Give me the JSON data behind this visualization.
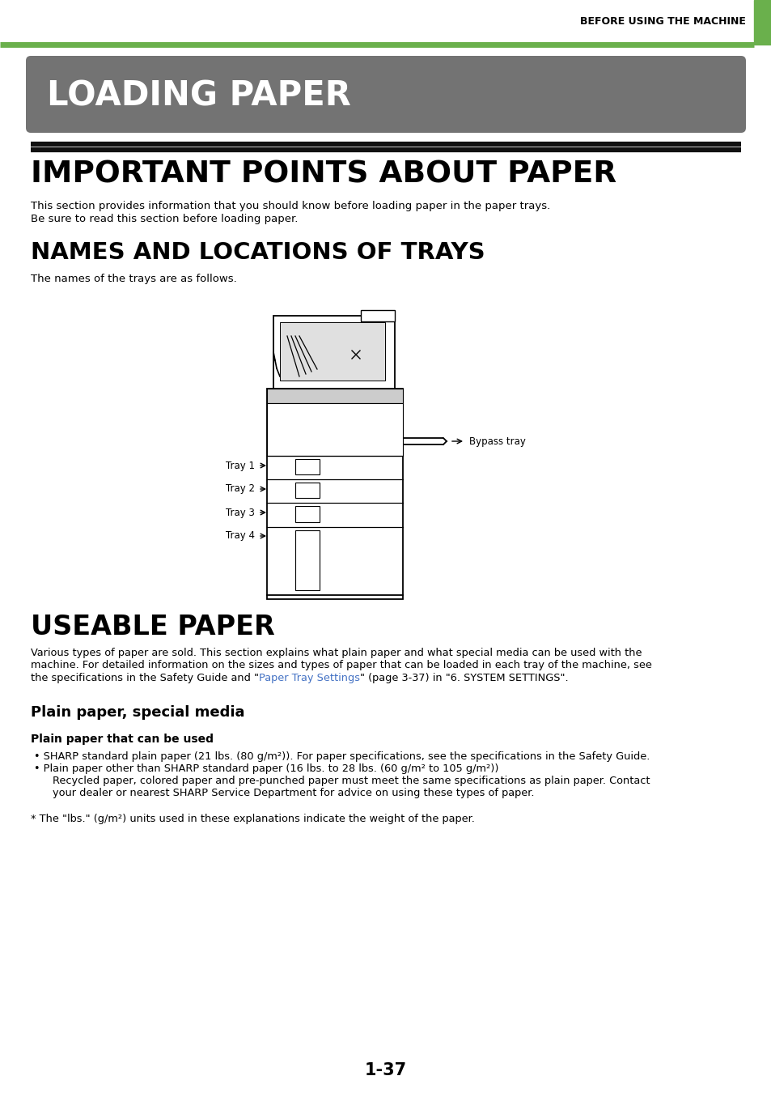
{
  "header_text": "BEFORE USING THE MACHINE",
  "header_bar_color": "#6ab04c",
  "loading_paper_bg": "#737373",
  "loading_paper_text": "LOADING PAPER",
  "loading_paper_text_color": "#ffffff",
  "section1_title": "IMPORTANT POINTS ABOUT PAPER",
  "section1_body1": "This section provides information that you should know before loading paper in the paper trays.",
  "section1_body2": "Be sure to read this section before loading paper.",
  "section2_title": "NAMES AND LOCATIONS OF TRAYS",
  "section2_body": "The names of the trays are as follows.",
  "section3_title": "USEABLE PAPER",
  "section3_subtitle": "Plain paper, special media",
  "section3_subsubtitle": "Plain paper that can be used",
  "section3_body1": "Various types of paper are sold. This section explains what plain paper and what special media can be used with the",
  "section3_body2": "machine. For detailed information on the sizes and types of paper that can be loaded in each tray of the machine, see",
  "section3_body3_pre": "the specifications in the Safety Guide and \"",
  "section3_body3_link": "Paper Tray Settings",
  "section3_body3_post": "\" (page 3-37) in \"6. SYSTEM SETTINGS\".",
  "section3_link_color": "#4472c4",
  "bullet1": "• SHARP standard plain paper (21 lbs. (80 g/m²)). For paper specifications, see the specifications in the Safety Guide.",
  "bullet2": "• Plain paper other than SHARP standard paper (16 lbs. to 28 lbs. (60 g/m² to 105 g/m²))",
  "indent1": "Recycled paper, colored paper and pre-punched paper must meet the same specifications as plain paper. Contact",
  "indent2": "your dealer or nearest SHARP Service Department for advice on using these types of paper.",
  "footnote": "* The \"lbs.\" (g/m²) units used in these explanations indicate the weight of the paper.",
  "page_number": "1-37",
  "tray_labels": [
    "Tray 1",
    "Tray 2",
    "Tray 3",
    "Tray 4"
  ],
  "bypass_label": "Bypass tray",
  "bg_color": "#ffffff",
  "text_color": "#000000"
}
